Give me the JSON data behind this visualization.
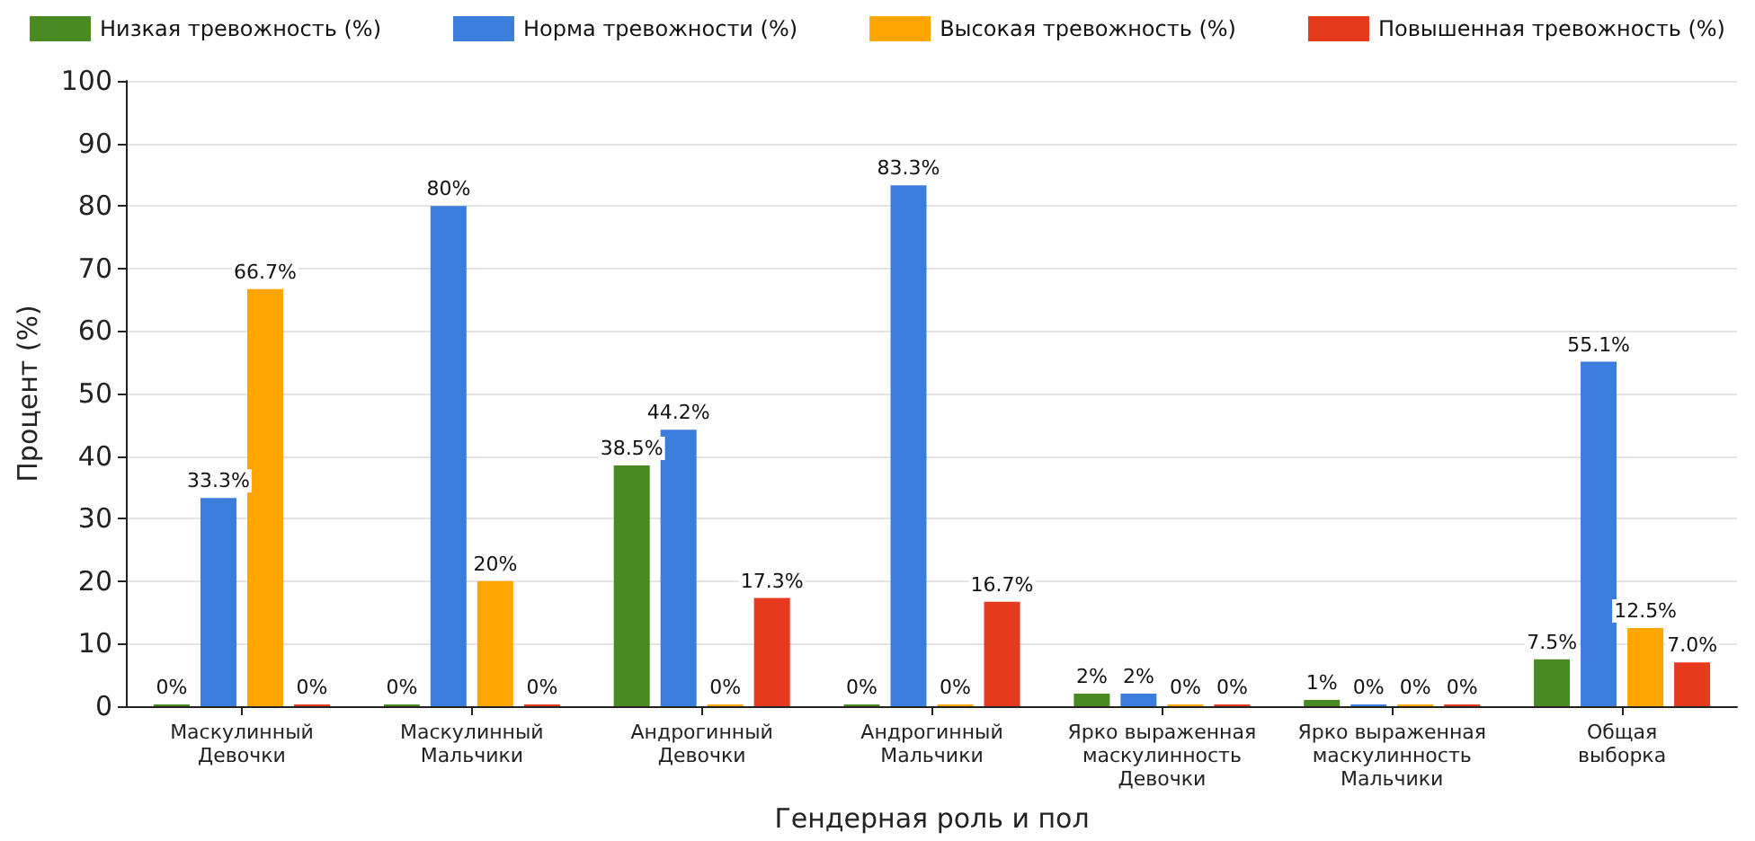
{
  "chart_data": {
    "type": "bar",
    "xlabel": "Гендерная роль и пол",
    "ylabel": "Процент (%)",
    "categories": [
      "Маскулинный\nДевочки",
      "Маскулинный\nМальчики",
      "Андрогинный\nДевочки",
      "Андрогинный\nМальчики",
      "Ярко выраженная\nмаскулинность\nДевочки",
      "Ярко выраженная\nмаскулинность\nМальчики",
      "Общая\nвыборка"
    ],
    "series": [
      {
        "name": "Низкая тревожность (%)",
        "color": "#4a8a22",
        "values": [
          0,
          0,
          38.5,
          0,
          2,
          1,
          7.5
        ],
        "value_labels": [
          "0%",
          "0%",
          "38.5%",
          "0%",
          "2%",
          "1%",
          "7.5%"
        ]
      },
      {
        "name": "Норма тревожности (%)",
        "color": "#3b7ddd",
        "values": [
          33.3,
          80,
          44.2,
          83.3,
          2,
          0,
          55.1
        ],
        "value_labels": [
          "33.3%",
          "80%",
          "44.2%",
          "83.3%",
          "2%",
          "0%",
          "55.1%"
        ]
      },
      {
        "name": "Высокая тревожность (%)",
        "color": "#ffa500",
        "values": [
          66.7,
          20,
          0,
          0,
          0,
          0,
          12.5
        ],
        "value_labels": [
          "66.7%",
          "20%",
          "0%",
          "0%",
          "0%",
          "0%",
          "12.5%"
        ]
      },
      {
        "name": "Повышенная тревожность (%)",
        "color": "#e63a1f",
        "values": [
          0,
          0,
          17.3,
          16.7,
          0,
          0,
          7.0
        ],
        "value_labels": [
          "0%",
          "0%",
          "17.3%",
          "16.7%",
          "0%",
          "0%",
          "7.0%"
        ]
      }
    ],
    "ylim": [
      0,
      100
    ],
    "yticks": [
      0,
      10,
      20,
      30,
      40,
      50,
      60,
      70,
      80,
      90,
      100
    ],
    "grid": "y",
    "legend": "top"
  }
}
